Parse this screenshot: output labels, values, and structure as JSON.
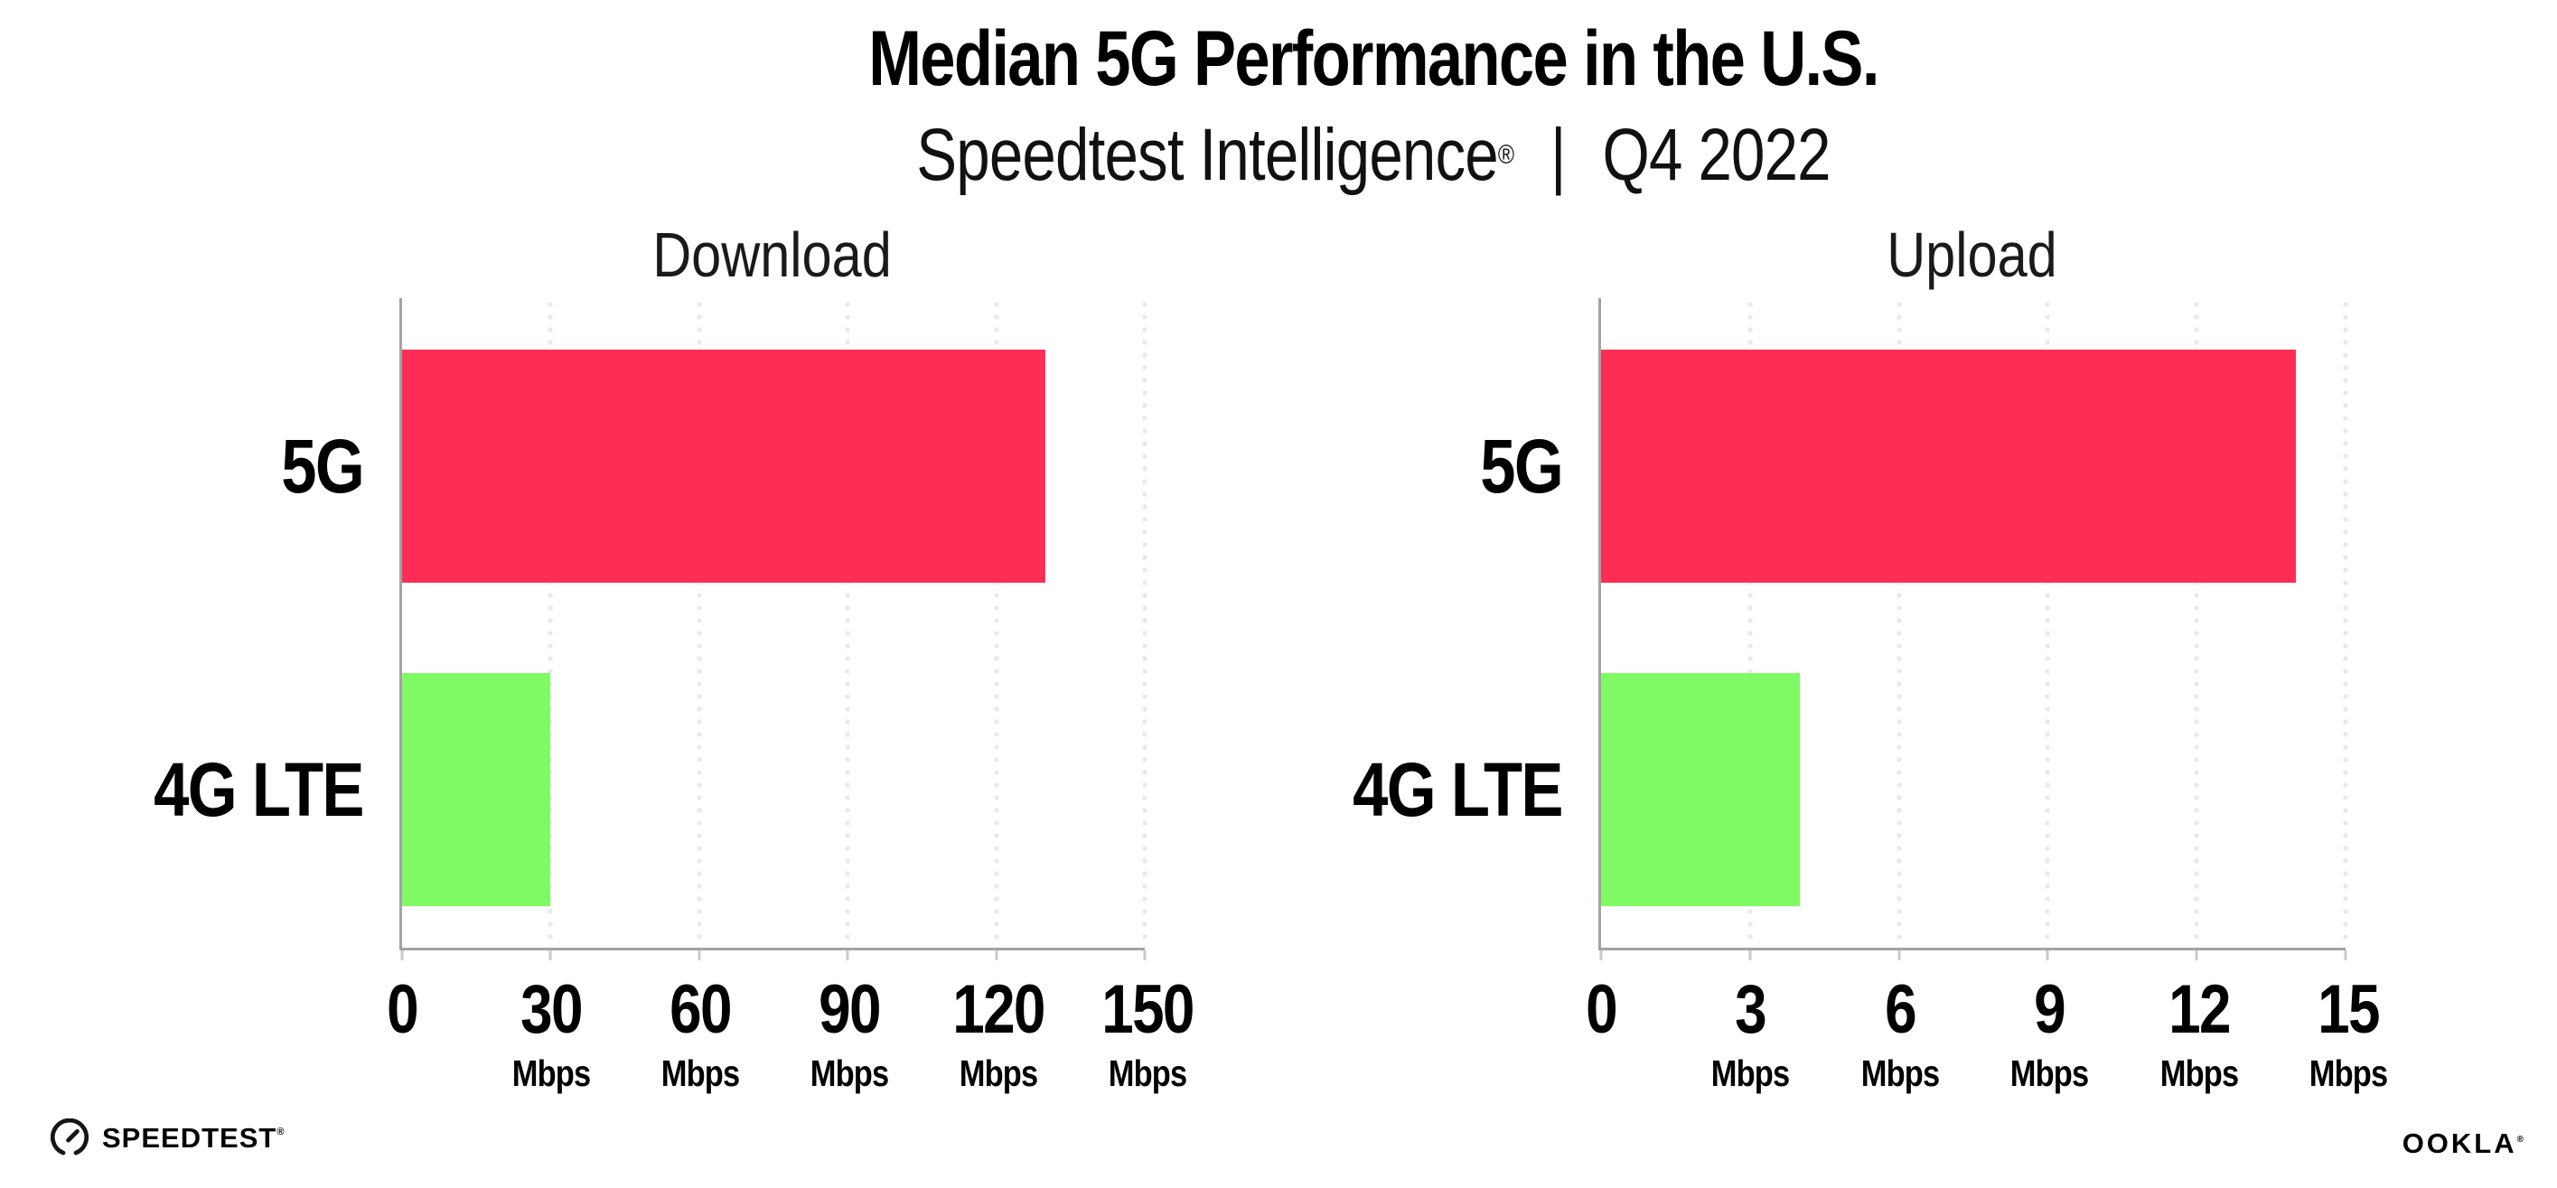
{
  "title": "Median 5G Performance in the U.S.",
  "subtitle": {
    "brand": "Speedtest Intelligence",
    "registered": "®",
    "separator": "|",
    "period": "Q4 2022"
  },
  "chart_data": [
    {
      "type": "bar",
      "orientation": "horizontal",
      "title": "Download",
      "categories": [
        "5G",
        "4G LTE"
      ],
      "values": [
        130,
        30
      ],
      "unit": "Mbps",
      "xlabel": "",
      "ylabel": "",
      "xlim": [
        0,
        150
      ],
      "ticks": [
        0,
        30,
        60,
        90,
        120,
        150
      ],
      "series_colors": [
        "#FE2D55",
        "#7FFA64"
      ],
      "grid": "dotted-vertical",
      "legend": "none"
    },
    {
      "type": "bar",
      "orientation": "horizontal",
      "title": "Upload",
      "categories": [
        "5G",
        "4G LTE"
      ],
      "values": [
        14,
        4
      ],
      "unit": "Mbps",
      "xlabel": "",
      "ylabel": "",
      "xlim": [
        0,
        15
      ],
      "ticks": [
        0,
        3,
        6,
        9,
        12,
        15
      ],
      "series_colors": [
        "#FE2D55",
        "#7FFA64"
      ],
      "grid": "dotted-vertical",
      "legend": "none"
    }
  ],
  "colors": {
    "bar_5g": "#FE2D55",
    "bar_4g_lte": "#7FFA64",
    "gridline": "#E8E8EF",
    "axis": "#A3A3A3",
    "tick": "#C9C9D2",
    "text": "#000000"
  },
  "footer": {
    "speedtest_label": "SPEEDTEST",
    "speedtest_mark": "®",
    "ookla_label": "OOKLA",
    "ookla_mark": "®"
  }
}
